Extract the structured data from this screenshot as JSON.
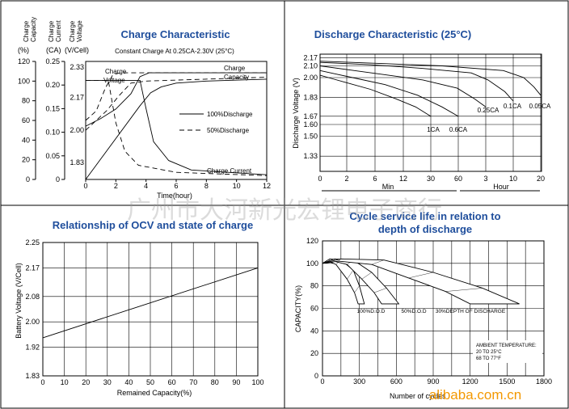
{
  "chart_data": [
    {
      "type": "line",
      "title": "Charge Characteristic",
      "subtitle": "Constant Charge At 0.25CA-2.30V  (25°C)",
      "xlabel": "Time(hour)",
      "x_ticks": [
        "0",
        "2",
        "4",
        "6",
        "8",
        "10",
        "12"
      ],
      "xlim": [
        0,
        12
      ],
      "y_axes": [
        {
          "header": [
            "Charge",
            "Capacity"
          ],
          "unit": "(%)",
          "ticks": [
            "0",
            "20",
            "40",
            "60",
            "80",
            "100",
            "120"
          ],
          "range": [
            0,
            120
          ]
        },
        {
          "header": [
            "Charge",
            "Current"
          ],
          "unit": "(CA)",
          "ticks": [
            "0",
            "0.05",
            "0.10",
            "0.15",
            "0.20",
            "0.25"
          ],
          "range": [
            0,
            0.25
          ]
        },
        {
          "header": [
            "Charge",
            "Voltage"
          ],
          "unit": "(V/Cell)",
          "ticks": [
            "1.83",
            "2.00",
            "2.17",
            "2.33"
          ],
          "range": [
            1.74,
            2.36
          ]
        }
      ],
      "annotations": [
        "Charge Voltage",
        "Charge Capacity",
        "Charge Current"
      ],
      "legend": [
        "100%Discharge",
        "50%Discharge"
      ],
      "series": [
        {
          "name": "Charge Voltage 100%Discharge",
          "axis": "voltage",
          "style": "solid",
          "points": [
            [
              0,
              2.02
            ],
            [
              1,
              2.06
            ],
            [
              2,
              2.11
            ],
            [
              3,
              2.19
            ],
            [
              3.6,
              2.28
            ],
            [
              4.2,
              2.3
            ],
            [
              12,
              2.3
            ]
          ]
        },
        {
          "name": "Charge Voltage 50%Discharge",
          "axis": "voltage",
          "style": "dashed",
          "points": [
            [
              0,
              2.05
            ],
            [
              0.7,
              2.1
            ],
            [
              1.3,
              2.22
            ],
            [
              1.8,
              2.29
            ],
            [
              2.3,
              2.3
            ],
            [
              12,
              2.3
            ]
          ]
        },
        {
          "name": "Charge Capacity 100%Discharge",
          "axis": "capacity",
          "style": "solid",
          "points": [
            [
              0,
              0
            ],
            [
              3.6,
              75
            ],
            [
              4.3,
              88
            ],
            [
              5,
              94
            ],
            [
              6,
              98
            ],
            [
              8,
              100
            ],
            [
              12,
              102
            ]
          ]
        },
        {
          "name": "Charge Capacity 50%Discharge",
          "axis": "capacity",
          "style": "dashed",
          "points": [
            [
              0,
              50
            ],
            [
              1.4,
              70
            ],
            [
              2.2,
              85
            ],
            [
              3,
              98
            ],
            [
              4,
              100
            ],
            [
              12,
              104
            ]
          ]
        },
        {
          "name": "Charge Current 100%Discharge",
          "axis": "current",
          "style": "solid",
          "points": [
            [
              0,
              0.21
            ],
            [
              3.6,
              0.21
            ],
            [
              4.0,
              0.15
            ],
            [
              4.5,
              0.08
            ],
            [
              5.5,
              0.04
            ],
            [
              7,
              0.02
            ],
            [
              12,
              0.01
            ]
          ]
        },
        {
          "name": "Charge Current 50%Discharge",
          "axis": "current",
          "style": "dashed",
          "points": [
            [
              0,
              0.21
            ],
            [
              1.5,
              0.21
            ],
            [
              2,
              0.12
            ],
            [
              2.6,
              0.06
            ],
            [
              3.5,
              0.03
            ],
            [
              6,
              0.015
            ],
            [
              12,
              0.008
            ]
          ]
        }
      ]
    },
    {
      "type": "line",
      "title": "Discharge Characteristic  (25°C)",
      "ylabel": "Discharge Voltage (V)",
      "ylim": [
        1.2,
        2.2
      ],
      "y_ticks": [
        "1.33",
        "1.50",
        "1.60",
        "1.67",
        "1.83",
        "2.00",
        "2.10",
        "2.17"
      ],
      "x_ticks": [
        "0",
        "2",
        "6",
        "12",
        "30",
        "60",
        "3",
        "6",
        "10",
        "20"
      ],
      "x_units": [
        "Min",
        "Hour"
      ],
      "series": [
        {
          "name": "1CA",
          "points": [
            [
              0,
              2.02
            ],
            [
              5,
              1.99
            ],
            [
              10,
              1.96
            ],
            [
              20,
              1.9
            ],
            [
              30,
              1.82
            ],
            [
              38,
              1.75
            ],
            [
              44,
              1.67
            ]
          ]
        },
        {
          "name": "0.6CA",
          "points": [
            [
              0,
              2.06
            ],
            [
              10,
              2.03
            ],
            [
              20,
              2.0
            ],
            [
              40,
              1.94
            ],
            [
              60,
              1.85
            ],
            [
              75,
              1.75
            ],
            [
              85,
              1.67
            ]
          ]
        },
        {
          "name": "0.25CA",
          "points": [
            [
              0,
              2.1
            ],
            [
              60,
              2.06
            ],
            [
              120,
              2.02
            ],
            [
              180,
              1.98
            ],
            [
              240,
              1.91
            ],
            [
              270,
              1.82
            ],
            [
              290,
              1.75
            ]
          ]
        },
        {
          "name": "0.1CA",
          "points": [
            [
              0,
              2.13
            ],
            [
              180,
              2.11
            ],
            [
              360,
              2.08
            ],
            [
              540,
              2.04
            ],
            [
              600,
              1.98
            ],
            [
              660,
              1.88
            ],
            [
              690,
              1.8
            ]
          ]
        },
        {
          "name": "0.05CA",
          "points": [
            [
              0,
              2.14
            ],
            [
              360,
              2.12
            ],
            [
              720,
              2.1
            ],
            [
              1080,
              2.06
            ],
            [
              1200,
              2.0
            ],
            [
              1260,
              1.92
            ],
            [
              1300,
              1.85
            ]
          ]
        }
      ]
    },
    {
      "type": "line",
      "title": "Relationship of OCV and state of charge",
      "xlabel": "Remained Capacity(%)",
      "ylabel": "Battery Voltage (V/Cell)",
      "x_ticks": [
        "0",
        "10",
        "20",
        "30",
        "40",
        "50",
        "60",
        "70",
        "80",
        "90",
        "100"
      ],
      "y_ticks": [
        "1.83",
        "1.92",
        "2.00",
        "2.08",
        "2.17",
        "2.25"
      ],
      "xlim": [
        0,
        100
      ],
      "ylim": [
        1.83,
        2.25
      ],
      "series": [
        {
          "points": [
            [
              0,
              1.95
            ],
            [
              100,
              2.17
            ]
          ]
        }
      ]
    },
    {
      "type": "area",
      "title": "Cycle service life in relation to depth of discharge",
      "xlabel": "Number of cycles",
      "ylabel": "CAPACITY(%)",
      "x_ticks": [
        "0",
        "300",
        "600",
        "900",
        "1200",
        "1500",
        "1800"
      ],
      "y_ticks": [
        "0",
        "20",
        "40",
        "60",
        "80",
        "100",
        "120"
      ],
      "xlim": [
        0,
        1800
      ],
      "ylim": [
        0,
        120
      ],
      "bands": [
        {
          "name": "100%D.O.D",
          "upper": [
            [
              0,
              100
            ],
            [
              60,
              104
            ],
            [
              150,
              103
            ],
            [
              250,
              94
            ],
            [
              300,
              80
            ],
            [
              340,
              64
            ]
          ],
          "lower": [
            [
              0,
              100
            ],
            [
              50,
              102
            ],
            [
              110,
              99
            ],
            [
              200,
              86
            ],
            [
              260,
              74
            ],
            [
              290,
              64
            ]
          ]
        },
        {
          "name": "50%D.O.D",
          "upper": [
            [
              0,
              100
            ],
            [
              100,
              104
            ],
            [
              250,
              103
            ],
            [
              400,
              92
            ],
            [
              520,
              78
            ],
            [
              620,
              64
            ]
          ],
          "lower": [
            [
              0,
              100
            ],
            [
              90,
              102
            ],
            [
              200,
              99
            ],
            [
              320,
              86
            ],
            [
              420,
              74
            ],
            [
              480,
              64
            ]
          ]
        },
        {
          "name": "30%DEPTH OF DISCHARGE",
          "upper": [
            [
              0,
              100
            ],
            [
              150,
              104
            ],
            [
              500,
              103
            ],
            [
              900,
              92
            ],
            [
              1300,
              78
            ],
            [
              1600,
              64
            ]
          ],
          "lower": [
            [
              0,
              100
            ],
            [
              130,
              102
            ],
            [
              400,
              99
            ],
            [
              700,
              87
            ],
            [
              1000,
              75
            ],
            [
              1200,
              64
            ]
          ]
        }
      ],
      "annotations": [
        "AMBIENT TEMPERATURE:",
        "20 TO 25°C",
        "68 TO 77°F"
      ]
    }
  ],
  "watermark": "广州市大河新光宏锂电子商行",
  "brand": "alibaba.com.cn",
  "colors": {
    "title": "#1f4e9c",
    "brand": "#f39800",
    "line": "#000000"
  }
}
